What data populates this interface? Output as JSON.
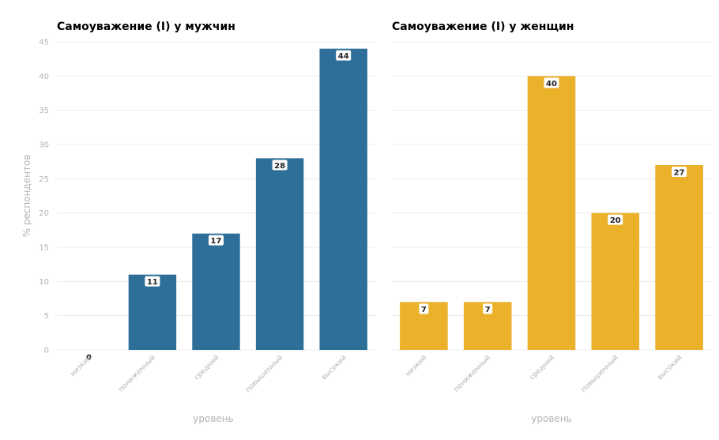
{
  "chart_data": [
    {
      "type": "bar",
      "title": "Самоуважение (I) у мужчин",
      "color": "#2e6f9a",
      "xlabel": "уровень",
      "ylabel": "% респондентов",
      "ylim": [
        0,
        45
      ],
      "yticks": [
        0,
        5,
        10,
        15,
        20,
        25,
        30,
        35,
        40,
        45
      ],
      "categories": [
        "низкий",
        "пониженный",
        "средний",
        "повышенный",
        "высокий"
      ],
      "values": [
        0,
        11,
        17,
        28,
        44
      ],
      "data_labels": [
        "0",
        "11",
        "17",
        "28",
        "44"
      ],
      "grid": true
    },
    {
      "type": "bar",
      "title": "Самоуважение (I) у женщин",
      "color": "#ebb12a",
      "xlabel": "уровень",
      "ylabel": "",
      "ylim": [
        0,
        45
      ],
      "categories": [
        "низкий",
        "пониженный",
        "средний",
        "повышенный",
        "высокий"
      ],
      "values": [
        7,
        7,
        40,
        20,
        27
      ],
      "data_labels": [
        "7",
        "7",
        "40",
        "20",
        "27"
      ],
      "grid": true
    }
  ]
}
